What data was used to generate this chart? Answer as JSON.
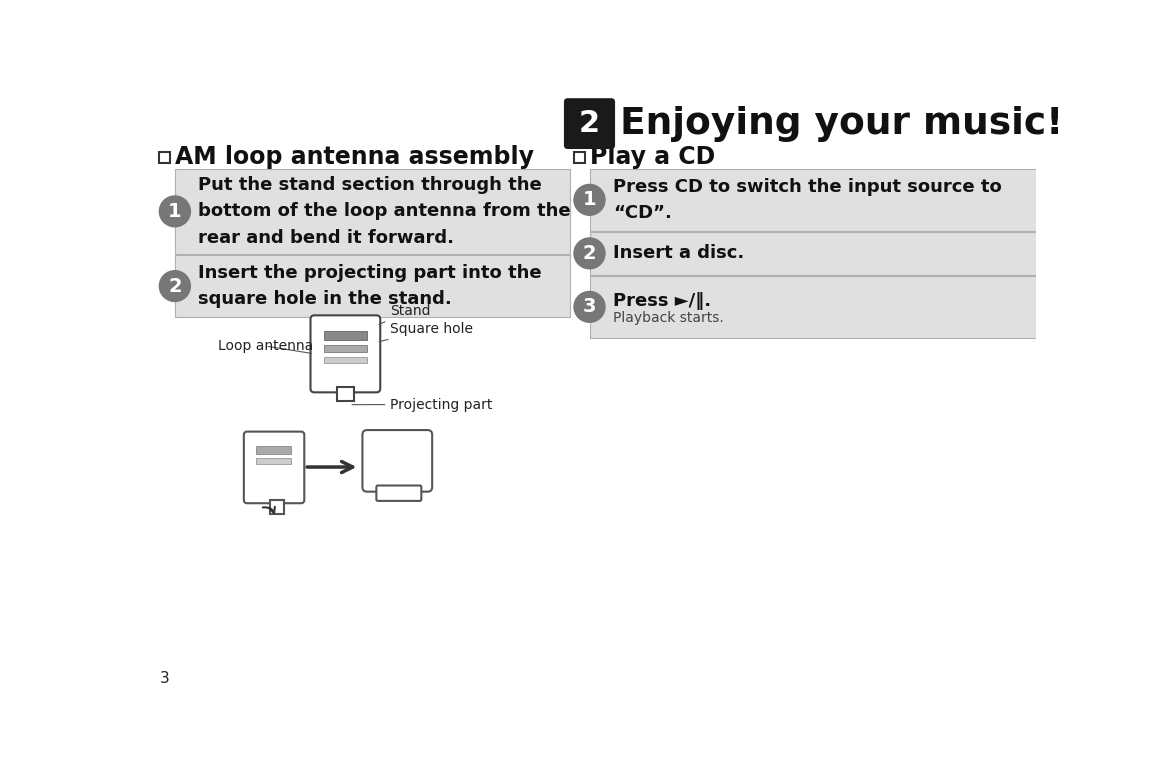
{
  "bg_color": "#ffffff",
  "title_badge_color": "#1a1a1a",
  "title_text": "Enjoying your music!",
  "title_badge_num": "2",
  "section_left_title": "AM loop antenna assembly",
  "section_right_title": "Play a CD",
  "left_steps": [
    {
      "num": "1",
      "text": "Put the stand section through the\nbottom of the loop antenna from the\nrear and bend it forward."
    },
    {
      "num": "2",
      "text": "Insert the projecting part into the\nsquare hole in the stand."
    }
  ],
  "right_steps": [
    {
      "num": "1",
      "text_bold": "Press CD to switch the input source to\n“CD”.",
      "text_normal": ""
    },
    {
      "num": "2",
      "text_bold": "Insert a disc.",
      "text_normal": ""
    },
    {
      "num": "3",
      "text_bold": "Press ►/‖.",
      "text_normal": "Playback starts."
    }
  ],
  "step_bg_color": "#e0e0e0",
  "step_border_color": "#b0b0b0",
  "left_badge_color": "#777777",
  "right_badge_color": "#777777",
  "page_num": "3",
  "diagram_labels": {
    "loop_antenna": "Loop antenna",
    "stand": "Stand",
    "square_hole": "Square hole",
    "projecting_part": "Projecting part"
  }
}
